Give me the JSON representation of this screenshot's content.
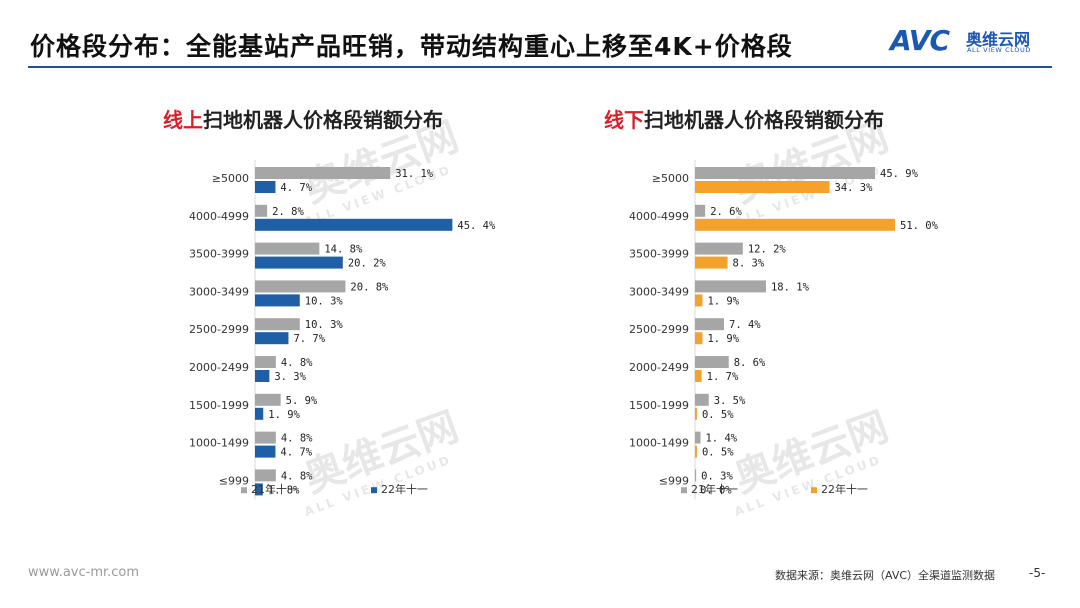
{
  "header": {
    "title": "价格段分布：全能基站产品旺销，带动结构重心上移至4K+价格段",
    "logo": {
      "brand": "AVC",
      "cn": "奥维云网",
      "en": "ALL VIEW CLOUD"
    }
  },
  "watermark": {
    "cn": "奥维云网",
    "en": "ALL VIEW CLOUD",
    "brand": "AVC"
  },
  "colors": {
    "title_line": "#1f4f9a",
    "series_2021": "#a6a6a6",
    "series_online_2022": "#1f5fa6",
    "series_offline_2022": "#f5a22d",
    "highlight": "#d8202a"
  },
  "chart_data": [
    {
      "type": "bar",
      "orientation": "horizontal",
      "title_highlight": "线上",
      "title_rest": "扫地机器人价格段销额分布",
      "categories": [
        "≥5000",
        "4000-4999",
        "3500-3999",
        "3000-3499",
        "2500-2999",
        "2000-2499",
        "1500-1999",
        "1000-1499",
        "≤999"
      ],
      "series": [
        {
          "name": "21年十一",
          "color": "#a6a6a6",
          "values": [
            31.1,
            2.8,
            14.8,
            20.8,
            10.3,
            4.8,
            5.9,
            4.8,
            4.8
          ]
        },
        {
          "name": "22年十一",
          "color": "#1f5fa6",
          "values": [
            4.7,
            45.4,
            20.2,
            10.3,
            7.7,
            3.3,
            1.9,
            4.7,
            1.8
          ]
        }
      ],
      "value_suffix": "%",
      "xlim": [
        0,
        46
      ],
      "legend": "bottom"
    },
    {
      "type": "bar",
      "orientation": "horizontal",
      "title_highlight": "线下",
      "title_rest": "扫地机器人价格段销额分布",
      "categories": [
        "≥5000",
        "4000-4999",
        "3500-3999",
        "3000-3499",
        "2500-2999",
        "2000-2499",
        "1500-1999",
        "1000-1499",
        "≤999"
      ],
      "series": [
        {
          "name": "21年十一",
          "color": "#a6a6a6",
          "values": [
            45.9,
            2.6,
            12.2,
            18.1,
            7.4,
            8.6,
            3.5,
            1.4,
            0.3
          ]
        },
        {
          "name": "22年十一",
          "color": "#f5a22d",
          "values": [
            34.3,
            51.0,
            8.3,
            1.9,
            1.9,
            1.7,
            0.5,
            0.5,
            0.0
          ]
        }
      ],
      "value_suffix": "%",
      "xlim": [
        0,
        51
      ],
      "legend": "bottom"
    }
  ],
  "footer": {
    "url": "www.avc-mr.com",
    "source": "数据来源：奥维云网（AVC）全渠道监测数据",
    "page": "-5-"
  }
}
